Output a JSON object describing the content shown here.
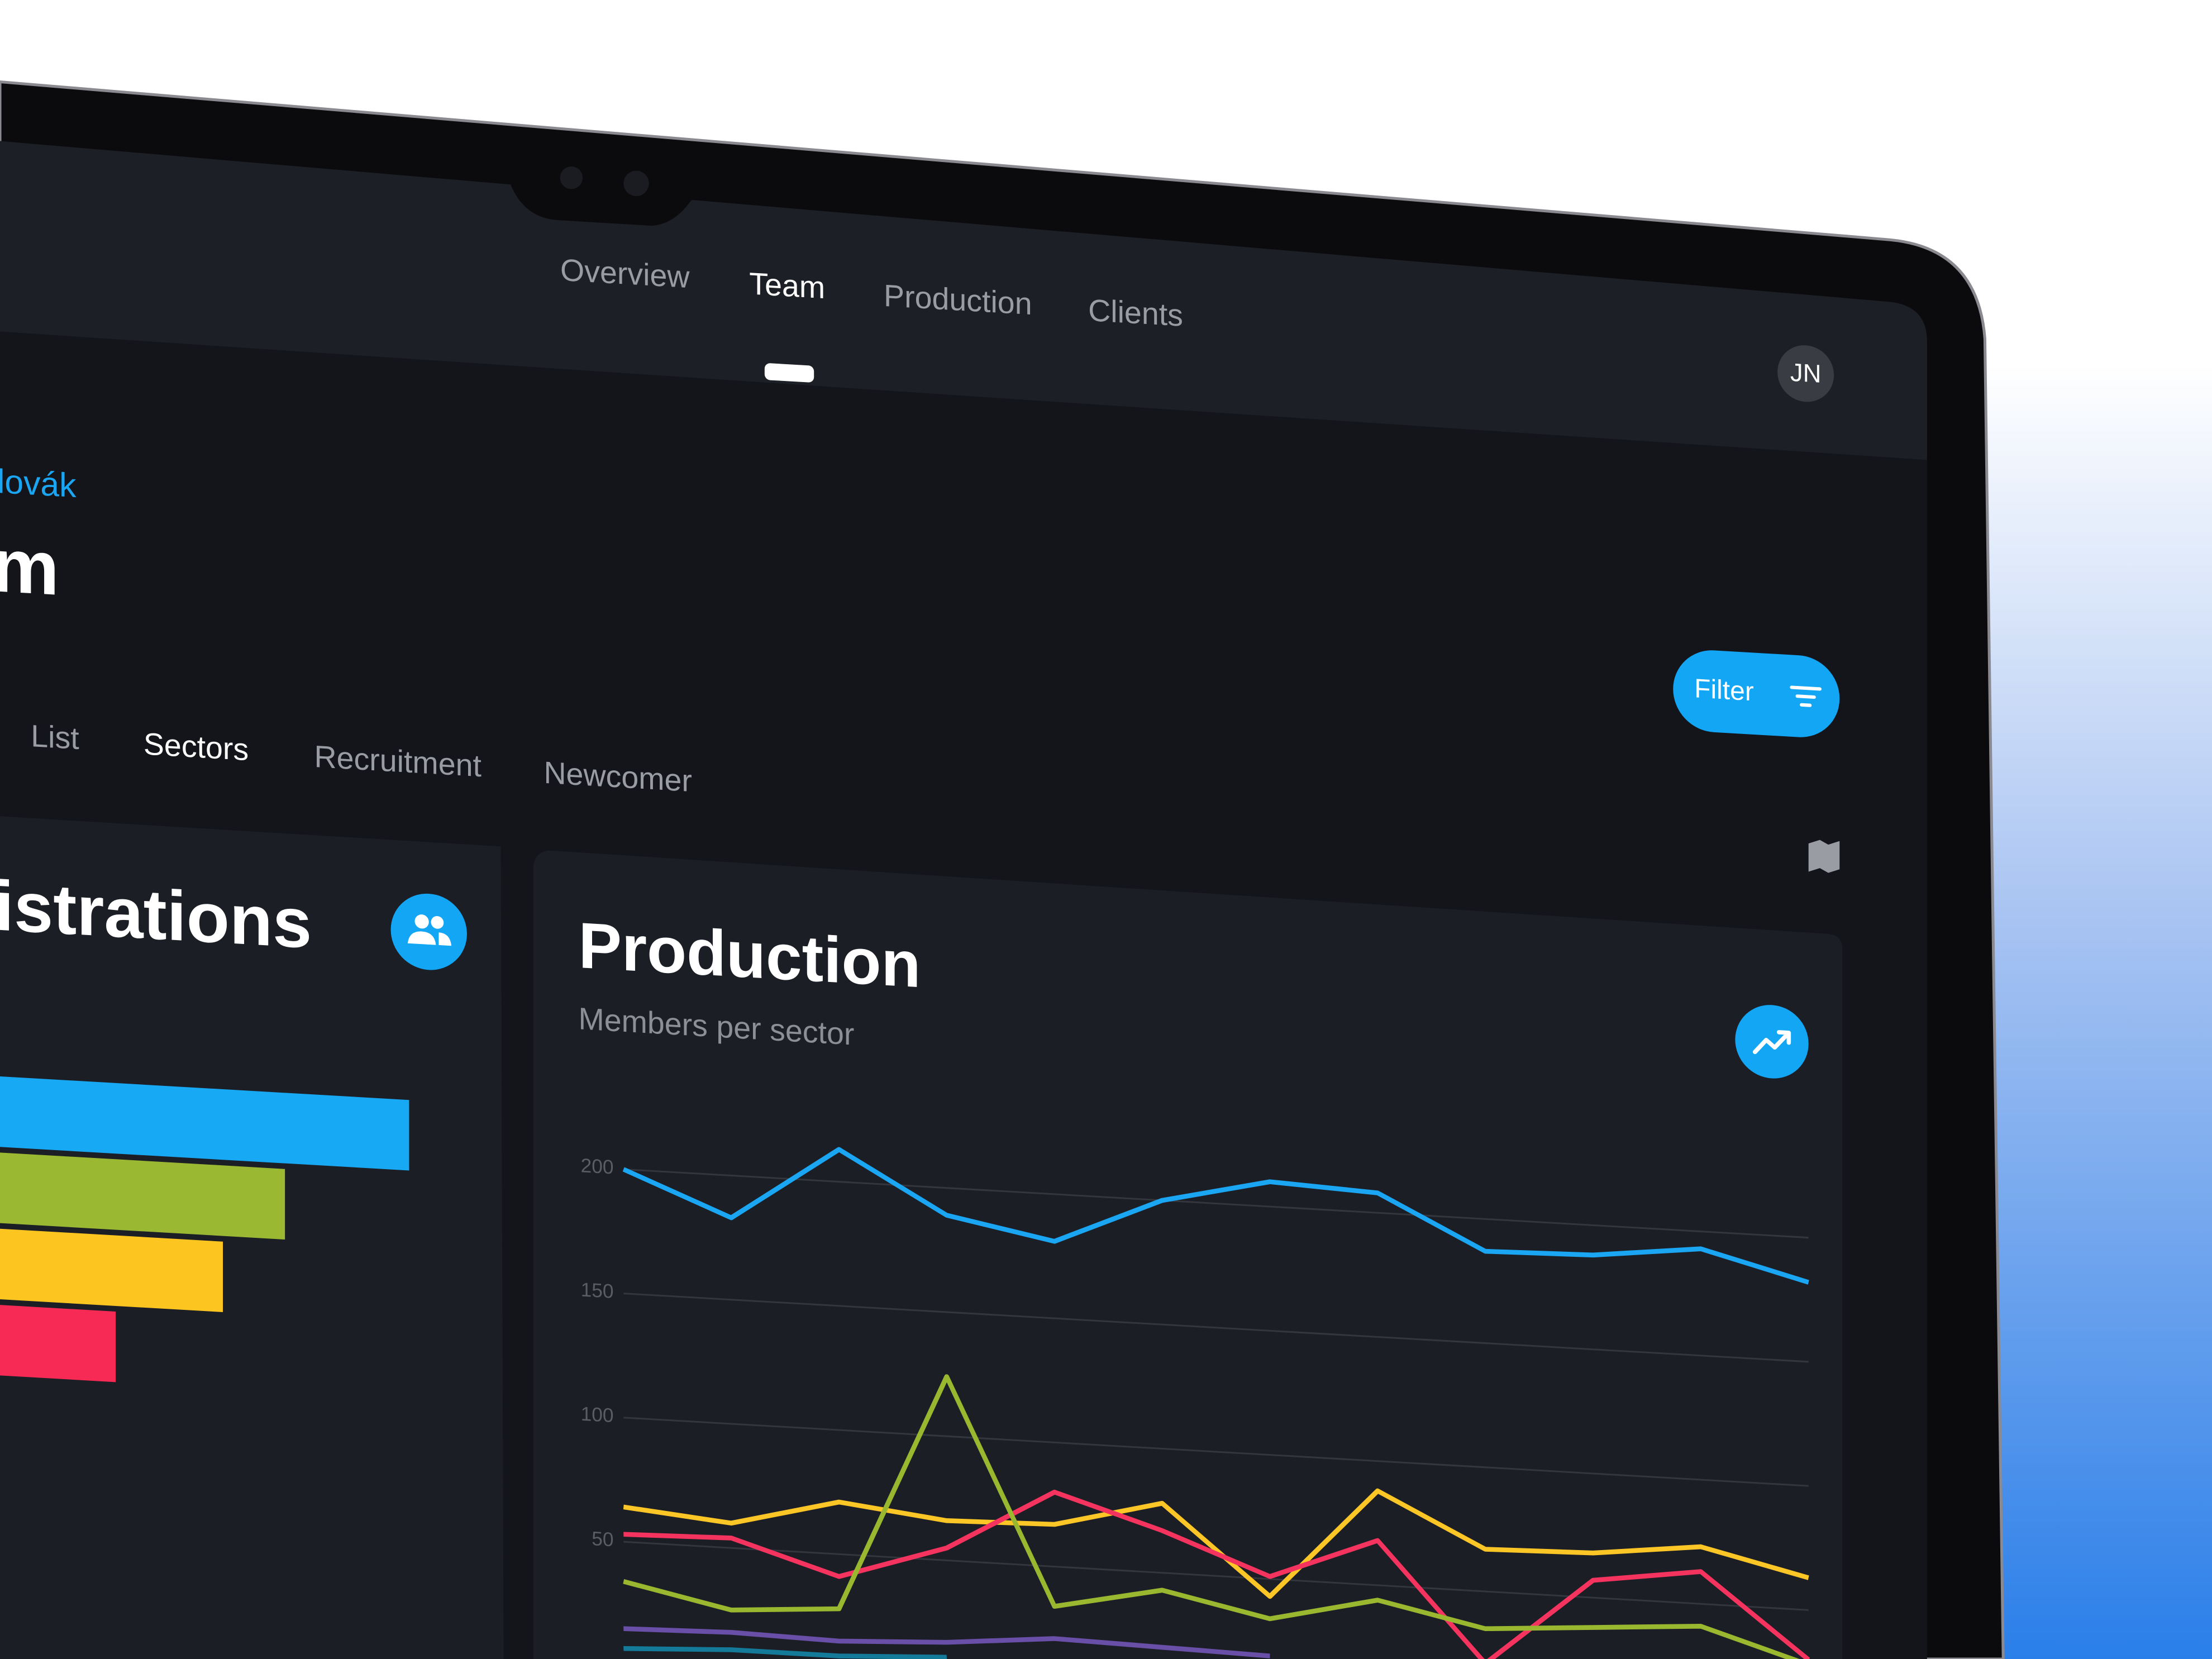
{
  "nav": [
    "Overview",
    "Team",
    "Production",
    "Clients"
  ],
  "avatar": "JN",
  "header": {
    "user_name": "lovák",
    "page_title": "m"
  },
  "tabs": [
    "List",
    "Sectors",
    "Recruitment",
    "Newcomer"
  ],
  "filter_button": "Filter",
  "chart_data": [
    {
      "type": "bar",
      "title": "istrations",
      "values": [
        290,
        202,
        158,
        82
      ],
      "colors": [
        "#18a9f5",
        "#9ab832",
        "#fdc51f",
        "#f72a55"
      ]
    },
    {
      "type": "line",
      "title": "Production",
      "subtitle": "Members per sector",
      "ylim": [
        0,
        225
      ],
      "yticks": [
        50,
        100,
        150,
        200
      ],
      "grid": true,
      "series": [
        {
          "color": "#1aa6f3",
          "values": [
            200,
            183,
            213,
            189,
            181,
            200,
            210,
            208,
            187,
            188,
            193,
            182
          ]
        },
        {
          "color": "#fcc626",
          "values": [
            64,
            60,
            71,
            66,
            67,
            78,
            43,
            88,
            67,
            68,
            73,
            63
          ]
        },
        {
          "color": "#f4345e",
          "values": [
            53,
            54,
            41,
            55,
            80,
            67,
            51,
            68,
            21,
            57,
            63,
            30
          ]
        },
        {
          "color": "#99b830",
          "values": [
            34,
            25,
            28,
            124,
            34,
            43,
            34,
            44,
            35,
            38,
            41,
            28
          ]
        },
        {
          "color": "#6a4fa8",
          "values": [
            15,
            16,
            15,
            17,
            21,
            20,
            19,
            null,
            null,
            null,
            null,
            null
          ]
        },
        {
          "color": "#137a9a",
          "values": [
            7,
            9,
            9,
            11,
            null,
            null,
            null,
            null,
            null,
            null,
            null,
            null
          ]
        }
      ]
    }
  ]
}
